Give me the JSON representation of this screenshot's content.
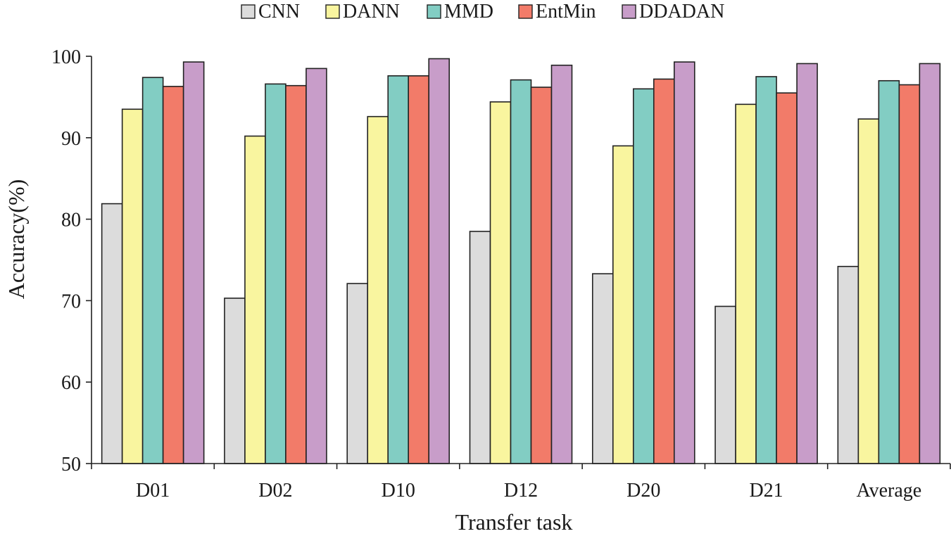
{
  "chart_data": {
    "type": "bar",
    "title": "",
    "xlabel": "Transfer task",
    "ylabel": "Accuracy(%)",
    "ylim": [
      50,
      100
    ],
    "yticks": [
      50,
      60,
      70,
      80,
      90,
      100
    ],
    "grid": false,
    "legend_position": "top-center",
    "categories": [
      "D01",
      "D02",
      "D10",
      "D12",
      "D20",
      "D21",
      "Average"
    ],
    "series": [
      {
        "name": "CNN",
        "color": "#dcdcdc",
        "values": [
          81.9,
          70.3,
          72.1,
          78.5,
          73.3,
          69.3,
          74.2
        ]
      },
      {
        "name": "DANN",
        "color": "#f9f59f",
        "values": [
          93.5,
          90.2,
          92.6,
          94.4,
          89.0,
          94.1,
          92.3
        ]
      },
      {
        "name": "MMD",
        "color": "#82cdc3",
        "values": [
          97.4,
          96.6,
          97.6,
          97.1,
          96.0,
          97.5,
          97.0
        ]
      },
      {
        "name": "EntMin",
        "color": "#f27b69",
        "values": [
          96.3,
          96.4,
          97.6,
          96.2,
          97.2,
          95.5,
          96.5
        ]
      },
      {
        "name": "DDADAN",
        "color": "#c89dc9",
        "values": [
          99.3,
          98.5,
          99.7,
          98.9,
          99.3,
          99.1,
          99.1
        ]
      }
    ]
  }
}
